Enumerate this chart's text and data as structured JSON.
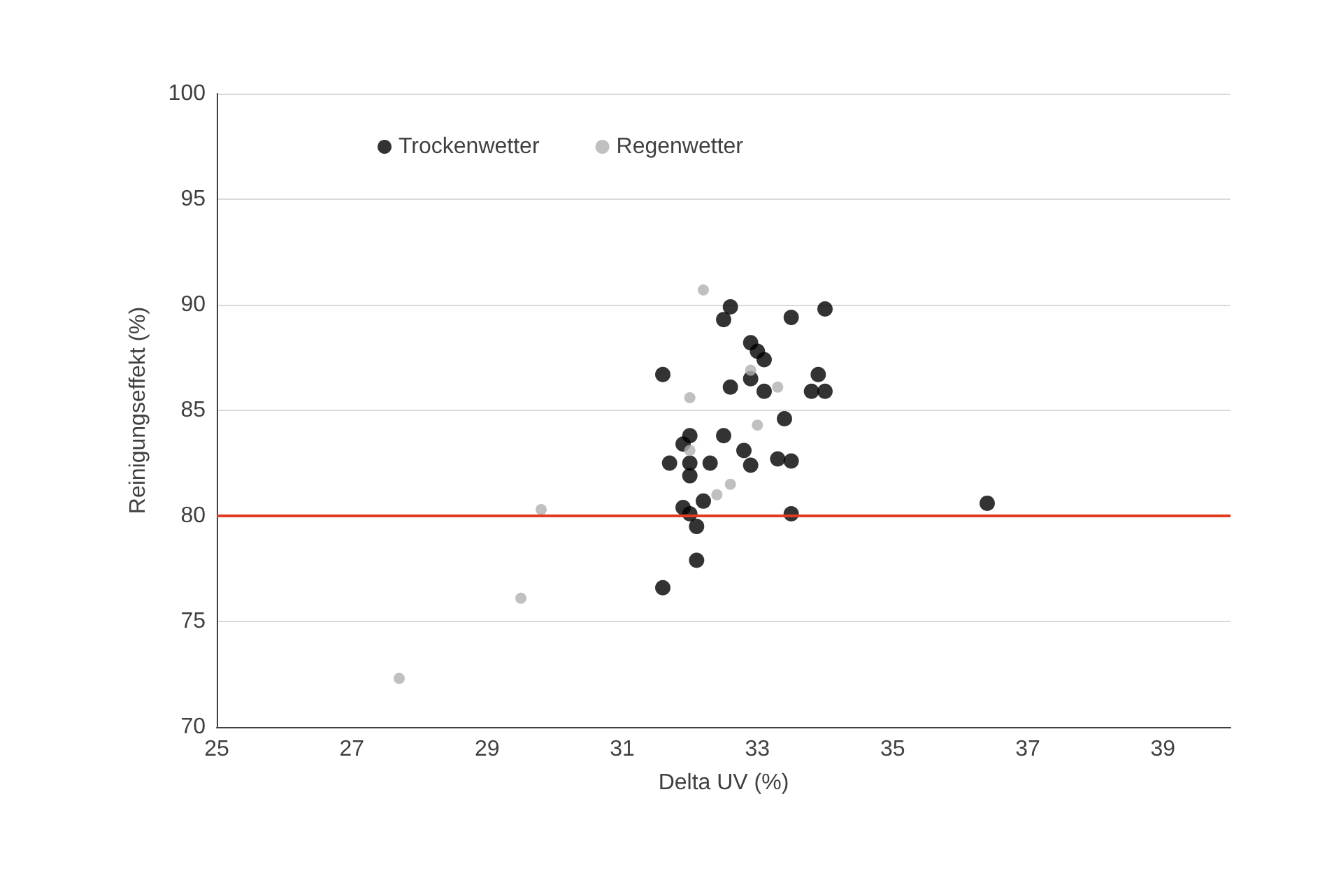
{
  "chart_data": {
    "type": "scatter",
    "xlabel": "Delta UV (%)",
    "ylabel": "Reinigungseffekt (%)",
    "xlim": [
      25,
      40
    ],
    "xticks": [
      25,
      27,
      29,
      31,
      33,
      35,
      37,
      39
    ],
    "ylim": [
      70,
      100
    ],
    "yticks": [
      70,
      75,
      80,
      85,
      90,
      95,
      100
    ],
    "grid": "y",
    "legend": "top left",
    "marker": "circle",
    "ref_lines": [
      {
        "axis": "y",
        "value": 80,
        "color": "#e03c22"
      }
    ],
    "series": [
      {
        "name": "Trockenwetter",
        "color": "#000000",
        "x": [
          31.6,
          32.6,
          32.5,
          34.0,
          33.5,
          32.9,
          33.0,
          33.1,
          32.6,
          32.9,
          33.1,
          33.9,
          33.8,
          34.0,
          33.4,
          32.0,
          32.5,
          31.7,
          32.0,
          32.3,
          32.9,
          33.3,
          33.5,
          32.0,
          32.8,
          32.2,
          31.9,
          32.0,
          32.1,
          32.1,
          31.6,
          33.5,
          36.4,
          31.9
        ],
        "values": [
          86.7,
          89.9,
          89.3,
          89.8,
          89.4,
          88.2,
          87.8,
          87.4,
          86.1,
          86.5,
          85.9,
          86.7,
          85.9,
          85.9,
          84.6,
          83.8,
          83.8,
          82.5,
          82.5,
          82.5,
          82.4,
          82.7,
          82.6,
          81.9,
          83.1,
          80.7,
          80.4,
          80.1,
          79.5,
          77.9,
          76.6,
          80.1,
          80.6,
          83.4
        ]
      },
      {
        "name": "Regenwetter",
        "color": "#b0b0b0",
        "x": [
          32.2,
          32.0,
          32.9,
          33.3,
          33.0,
          32.6,
          32.4,
          32.0,
          29.8,
          29.5,
          27.7
        ],
        "values": [
          90.7,
          85.6,
          86.9,
          86.1,
          84.3,
          81.5,
          81.0,
          83.1,
          80.3,
          76.1,
          72.3
        ]
      }
    ]
  }
}
